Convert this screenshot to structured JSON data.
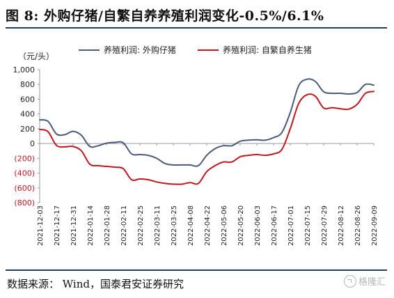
{
  "header": {
    "title": "图 8:  外购仔猪/自繁自养养殖利润变化-0.5%/6.1%"
  },
  "footer": {
    "source": "数据来源：  Wind，国泰君安证券研究",
    "watermark": "格隆汇"
  },
  "colors": {
    "series_blue": "#4a5a7a",
    "series_red": "#c0161e",
    "negative_tick": "#c0161e",
    "rule": "#1f3b63"
  },
  "chart_data": {
    "type": "line",
    "unit_label": "（元/头）",
    "ylim": [
      -800,
      1000
    ],
    "yticks": [
      {
        "value": 1000,
        "label": "1,000",
        "negative": false
      },
      {
        "value": 800,
        "label": "800",
        "negative": false
      },
      {
        "value": 600,
        "label": "600",
        "negative": false
      },
      {
        "value": 400,
        "label": "400",
        "negative": false
      },
      {
        "value": 200,
        "label": "200",
        "negative": false
      },
      {
        "value": 0,
        "label": "0",
        "negative": false
      },
      {
        "value": -200,
        "label": "(200)",
        "negative": true
      },
      {
        "value": -400,
        "label": "(400)",
        "negative": true
      },
      {
        "value": -600,
        "label": "(600)",
        "negative": true
      },
      {
        "value": -800,
        "label": "(800)",
        "negative": true
      }
    ],
    "xtick_labels": [
      "2021-12-03",
      "2021-12-17",
      "2021-12-31",
      "2022-01-14",
      "2022-01-28",
      "2022-02-11",
      "2022-02-25",
      "2022-03-11",
      "2022-03-25",
      "2022-04-08",
      "2022-04-22",
      "2022-05-06",
      "2022-05-20",
      "2022-06-03",
      "2022-06-17",
      "2022-07-01",
      "2022-07-15",
      "2022-07-29",
      "2022-08-12",
      "2022-08-26",
      "2022-09-09"
    ],
    "x": [
      "2021-12-03",
      "2021-12-10",
      "2021-12-17",
      "2021-12-24",
      "2021-12-31",
      "2022-01-07",
      "2022-01-14",
      "2022-01-21",
      "2022-01-28",
      "2022-02-04",
      "2022-02-11",
      "2022-02-18",
      "2022-02-25",
      "2022-03-04",
      "2022-03-11",
      "2022-03-18",
      "2022-03-25",
      "2022-04-01",
      "2022-04-08",
      "2022-04-15",
      "2022-04-22",
      "2022-04-29",
      "2022-05-06",
      "2022-05-13",
      "2022-05-20",
      "2022-05-27",
      "2022-06-03",
      "2022-06-10",
      "2022-06-17",
      "2022-06-24",
      "2022-07-01",
      "2022-07-08",
      "2022-07-15",
      "2022-07-22",
      "2022-07-29",
      "2022-08-05",
      "2022-08-12",
      "2022-08-19",
      "2022-08-26",
      "2022-09-02",
      "2022-09-09"
    ],
    "series": [
      {
        "name": "养殖利润: 外购仔猪",
        "color": "#4a5a7a",
        "values": [
          320,
          300,
          130,
          120,
          165,
          110,
          -40,
          -30,
          5,
          15,
          10,
          -140,
          -150,
          -160,
          -200,
          -270,
          -290,
          -290,
          -290,
          -300,
          -160,
          -70,
          -30,
          -30,
          30,
          45,
          50,
          45,
          80,
          150,
          420,
          780,
          870,
          840,
          700,
          680,
          680,
          670,
          690,
          800,
          790
        ]
      },
      {
        "name": "养殖利润: 自繁自养生猪",
        "color": "#c0161e",
        "values": [
          190,
          160,
          -25,
          -45,
          -40,
          -100,
          -280,
          -300,
          -310,
          -320,
          -340,
          -490,
          -480,
          -490,
          -520,
          -540,
          -550,
          -550,
          -530,
          -540,
          -380,
          -300,
          -250,
          -250,
          -180,
          -160,
          -150,
          -160,
          -140,
          -80,
          200,
          540,
          660,
          640,
          480,
          485,
          470,
          465,
          530,
          680,
          705
        ]
      }
    ],
    "grid": false,
    "legend_position": "top"
  }
}
